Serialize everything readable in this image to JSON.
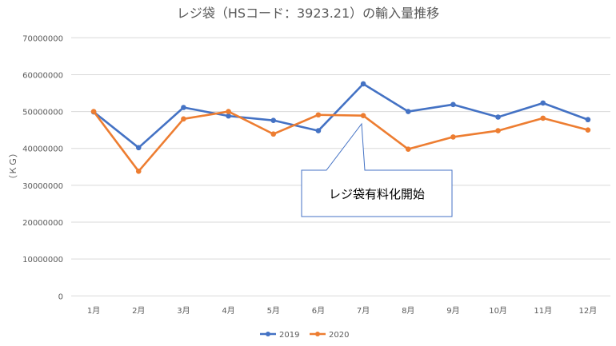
{
  "chart_data": {
    "type": "line",
    "title": "レジ袋（HSコード：3923.21）の輸入量推移",
    "xlabel": "",
    "ylabel": "（ＫＧ）",
    "ylim": [
      0,
      70000000
    ],
    "yticks": [
      "0",
      "10000000",
      "20000000",
      "30000000",
      "40000000",
      "50000000",
      "60000000",
      "70000000"
    ],
    "grid": true,
    "legend": "bottom",
    "categories": [
      "1月",
      "2月",
      "3月",
      "4月",
      "5月",
      "6月",
      "7月",
      "8月",
      "9月",
      "10月",
      "11月",
      "12月"
    ],
    "series": [
      {
        "name": "2019",
        "color": "#4472C4",
        "values": [
          49900000,
          40200000,
          51100000,
          48800000,
          47600000,
          44800000,
          57500000,
          50000000,
          51900000,
          48500000,
          52300000,
          47800000
        ]
      },
      {
        "name": "2020",
        "color": "#ED7D31",
        "values": [
          50000000,
          33800000,
          48000000,
          50000000,
          43900000,
          49100000,
          48900000,
          39800000,
          43100000,
          44800000,
          48200000,
          45000000
        ]
      }
    ],
    "annotation": {
      "text": "レジ袋有料化開始",
      "category": "7月"
    }
  }
}
